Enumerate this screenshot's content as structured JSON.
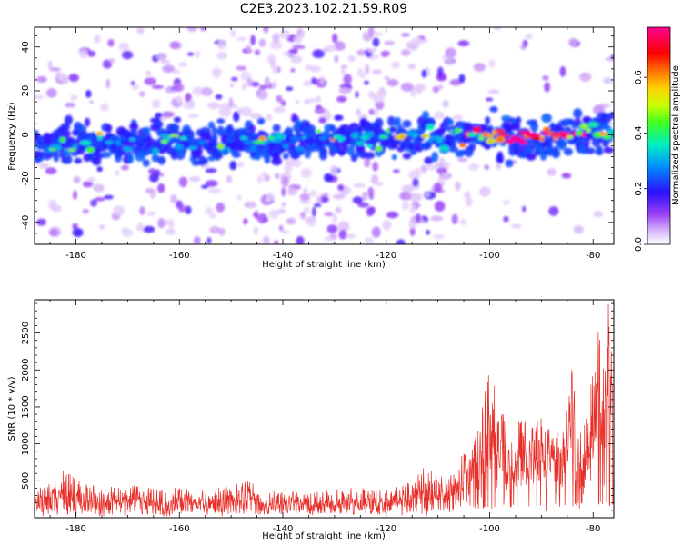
{
  "title": "C2E3.2023.102.21.59.R09",
  "chart_data": [
    {
      "type": "heatmap",
      "xlabel": "Height of straight line (km)",
      "ylabel": "Frequency (Hz)",
      "xlim": [
        -188,
        -76
      ],
      "ylim": [
        -50,
        49
      ],
      "x_ticks": [
        "-180",
        "-160",
        "-140",
        "-120",
        "-100",
        "-80"
      ],
      "y_ticks": [
        "-40",
        "-20",
        "0",
        "20",
        "40"
      ],
      "colorbar": {
        "label": "Normalized spectral amplitude",
        "range": [
          0.0,
          0.78
        ],
        "ticks": [
          "0.0",
          "0.2",
          "0.4",
          "0.6"
        ]
      },
      "band": {
        "center_frequency_start": -5,
        "center_frequency_end": 0,
        "half_width_hz": 8,
        "peak_amplitude": 0.78,
        "peak_height_km": -91
      },
      "grid": false,
      "colormap": [
        "#e0c8f8",
        "#b070f0",
        "#6a00ff",
        "#2020ff",
        "#00c8ff",
        "#00ff80",
        "#80ff00",
        "#ffff00",
        "#ff8000",
        "#ff0000",
        "#ff00a0"
      ]
    },
    {
      "type": "line",
      "xlabel": "Height of straight line (km)",
      "ylabel": "SNR (10 * v/v)",
      "xlim": [
        -188,
        -76
      ],
      "ylim": [
        0,
        2950
      ],
      "x_ticks": [
        "-180",
        "-160",
        "-140",
        "-120",
        "-100",
        "-80"
      ],
      "y_ticks": [
        "500",
        "1000",
        "1500",
        "2000",
        "2500"
      ],
      "grid": false,
      "series": [
        {
          "color": "#e8302a",
          "envelope_points": [
            [
              -188,
              420
            ],
            [
              -185,
              480
            ],
            [
              -182,
              730
            ],
            [
              -178,
              450
            ],
            [
              -172,
              420
            ],
            [
              -166,
              460
            ],
            [
              -160,
              400
            ],
            [
              -156,
              380
            ],
            [
              -150,
              430
            ],
            [
              -147,
              580
            ],
            [
              -144,
              380
            ],
            [
              -140,
              360
            ],
            [
              -136,
              360
            ],
            [
              -130,
              380
            ],
            [
              -126,
              420
            ],
            [
              -122,
              380
            ],
            [
              -119,
              380
            ],
            [
              -116,
              480
            ],
            [
              -114,
              700
            ],
            [
              -112,
              820
            ],
            [
              -110,
              560
            ],
            [
              -108,
              620
            ],
            [
              -106,
              780
            ],
            [
              -104,
              980
            ],
            [
              -102,
              1250
            ],
            [
              -100,
              2080
            ],
            [
              -98,
              1550
            ],
            [
              -97,
              1350
            ],
            [
              -95,
              1000
            ],
            [
              -94,
              1450
            ],
            [
              -92,
              1180
            ],
            [
              -91,
              1550
            ],
            [
              -89,
              1300
            ],
            [
              -88,
              1100
            ],
            [
              -86,
              1380
            ],
            [
              -84,
              2060
            ],
            [
              -83,
              1250
            ],
            [
              -81,
              1450
            ],
            [
              -79,
              2650
            ],
            [
              -78,
              2000
            ],
            [
              -77,
              2950
            ],
            [
              -76,
              1750
            ]
          ],
          "floor_points": [
            [
              -188,
              40
            ],
            [
              -160,
              40
            ],
            [
              -120,
              40
            ],
            [
              -112,
              60
            ],
            [
              -104,
              120
            ],
            [
              -100,
              120
            ],
            [
              -90,
              120
            ],
            [
              -80,
              150
            ],
            [
              -76,
              150
            ]
          ]
        }
      ]
    }
  ]
}
